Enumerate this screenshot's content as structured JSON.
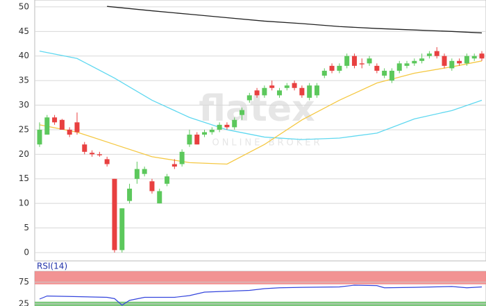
{
  "chart_data": {
    "type": "candlestick",
    "watermark": "flatex",
    "watermark_sub": "ONLINE BROKER",
    "ylim": [
      -1.7,
      51.4
    ],
    "yticks": [
      0,
      5,
      10,
      15,
      20,
      25,
      30,
      35,
      40,
      45,
      50
    ],
    "grid": true,
    "up_color": "#5cc85c",
    "down_color": "#e84040",
    "open": [
      22,
      24,
      27.5,
      27,
      25,
      26.5,
      22,
      20.3,
      20,
      19,
      15,
      0.5,
      10.5,
      15,
      16,
      14.5,
      10,
      14,
      18,
      18,
      22,
      24,
      24,
      24.5,
      25,
      26,
      25.5,
      28,
      31,
      33,
      32,
      34,
      32,
      33.5,
      34.5,
      33.5,
      31.5,
      32,
      36,
      38,
      37,
      38,
      40,
      38.5,
      38.5,
      38,
      36,
      35,
      37,
      38,
      38.5,
      39,
      40,
      41,
      40,
      37.5,
      39,
      38.5,
      39.5,
      40.5
    ],
    "high": [
      26.5,
      28,
      28,
      27.2,
      25.5,
      28.5,
      22.5,
      20.8,
      20.5,
      19.5,
      15,
      9,
      14,
      18.5,
      17.5,
      15,
      13,
      16,
      19,
      21,
      25,
      24.5,
      25,
      25.5,
      26.5,
      26.5,
      27.5,
      29.5,
      32.5,
      33.5,
      34,
      35,
      33.5,
      34.5,
      35,
      34,
      34.5,
      34.5,
      37.5,
      38.5,
      38.5,
      40.5,
      40.5,
      39.5,
      40,
      38.5,
      37.5,
      37.5,
      39,
      39,
      39.5,
      40.5,
      41,
      41.8,
      40.5,
      39.5,
      39.5,
      40.5,
      40.5,
      41
    ],
    "low": [
      21.5,
      24,
      26,
      25,
      23.5,
      24,
      20,
      19.5,
      19.5,
      17.5,
      0,
      0,
      10,
      14,
      15.5,
      12,
      10,
      13.5,
      17,
      17.5,
      21.5,
      22,
      23.5,
      24,
      24.5,
      25,
      25,
      27,
      30.5,
      31.5,
      31.5,
      33,
      31.5,
      33,
      33,
      31.5,
      31,
      31.5,
      35.5,
      36.5,
      36.5,
      37.5,
      37.5,
      37.5,
      38,
      36.5,
      35.5,
      34.5,
      36.5,
      37.5,
      38,
      38.5,
      39.5,
      39.5,
      37.5,
      37,
      38,
      38,
      39,
      39
    ],
    "close": [
      25,
      27.5,
      26.5,
      25,
      24,
      24.5,
      20.5,
      20,
      19.8,
      18,
      0.5,
      9,
      13,
      17,
      17,
      12.5,
      12.5,
      15.5,
      17.5,
      20.5,
      24,
      22,
      24.5,
      25,
      26,
      25.5,
      27,
      29,
      32,
      32,
      33.5,
      33.5,
      33,
      34,
      33.5,
      32,
      34,
      34,
      37,
      37,
      38,
      40,
      38,
      38.3,
      39.5,
      37,
      37,
      37,
      38.5,
      38.5,
      39,
      39.5,
      40.5,
      40,
      38,
      39,
      38.5,
      40,
      40,
      39.5
    ],
    "lines": [
      {
        "color": "#222222",
        "x": [
          9,
          15,
          20,
          25,
          30,
          35,
          40,
          45,
          50,
          55,
          59
        ],
        "values": [
          50.1,
          49.2,
          48.5,
          47.8,
          47.1,
          46.6,
          46,
          45.6,
          45.3,
          45,
          44.7
        ]
      },
      {
        "color": "#5fd8f0",
        "x": [
          0,
          5,
          10,
          15,
          20,
          25,
          30,
          35,
          40,
          45,
          50,
          55,
          59
        ],
        "values": [
          41,
          39.5,
          35.5,
          31,
          27.5,
          25,
          23.5,
          23,
          23.3,
          24.3,
          27.2,
          28.9,
          31
        ]
      },
      {
        "color": "#f5c842",
        "x": [
          0,
          5,
          10,
          15,
          20,
          25,
          30,
          35,
          40,
          45,
          50,
          55,
          59
        ],
        "values": [
          26,
          24.5,
          22,
          19.5,
          18.3,
          18,
          22,
          27,
          31,
          34.5,
          36.5,
          37.8,
          39
        ]
      }
    ],
    "rsi": {
      "title": "RSI(14)",
      "ylim": [
        20,
        100
      ],
      "yticks": [
        25,
        75
      ],
      "overbought": [
        70,
        100
      ],
      "oversold": [
        20,
        30
      ],
      "color": "#3344dd",
      "x": [
        0,
        1,
        4,
        9,
        10,
        11,
        12,
        14,
        18,
        20,
        22,
        25,
        28,
        30,
        32,
        35,
        40,
        42,
        45,
        46,
        50,
        55,
        57,
        59
      ],
      "values": [
        36,
        43,
        42,
        40,
        37,
        22,
        33,
        40,
        40,
        44,
        52,
        54,
        56,
        60,
        62,
        63,
        64,
        68,
        67,
        62,
        63,
        65,
        62,
        64
      ]
    }
  }
}
